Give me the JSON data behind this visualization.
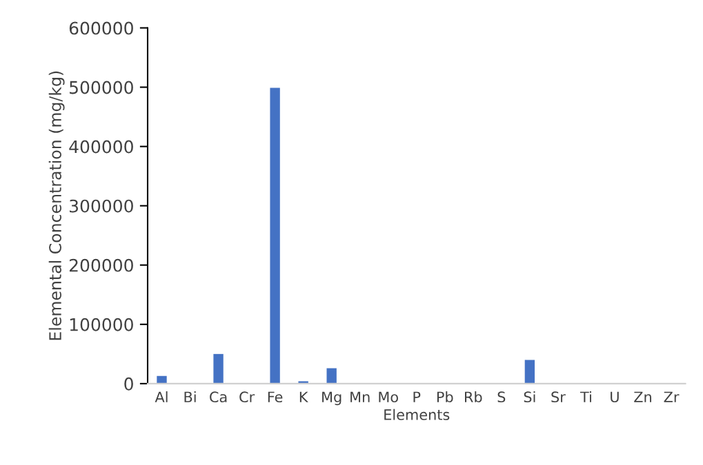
{
  "chart_data": {
    "type": "bar",
    "xlabel": "Elements",
    "ylabel": "Elemental Concentration (mg/kg)",
    "categories": [
      "Al",
      "Bi",
      "Ca",
      "Cr",
      "Fe",
      "K",
      "Mg",
      "Mn",
      "Mo",
      "P",
      "Pb",
      "Rb",
      "S",
      "Si",
      "Sr",
      "Ti",
      "U",
      "Zn",
      "Zr"
    ],
    "values": [
      13000,
      0,
      50000,
      0,
      499000,
      4000,
      26000,
      0,
      0,
      0,
      0,
      0,
      0,
      40000,
      0,
      0,
      0,
      0,
      0
    ],
    "color": "#4472c4",
    "ylim": [
      0,
      600000
    ],
    "yticks": [
      0,
      100000,
      200000,
      300000,
      400000,
      500000,
      600000
    ],
    "grid": false,
    "legend": false
  }
}
